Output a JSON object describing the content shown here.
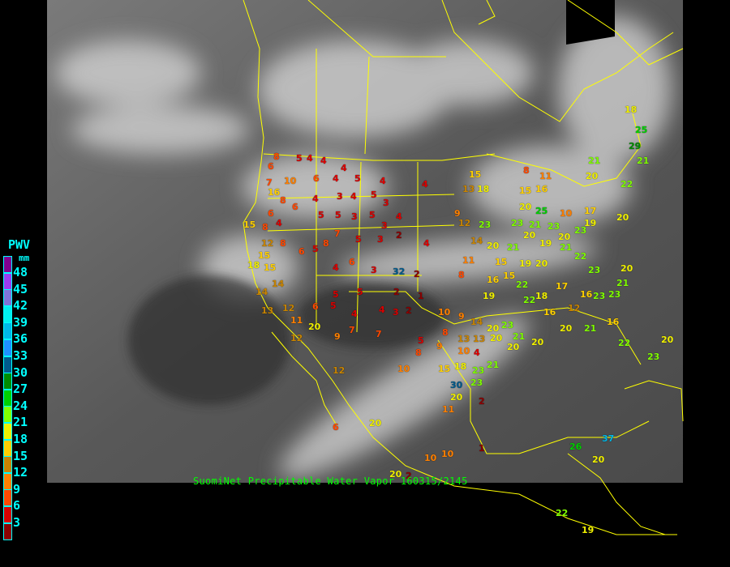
{
  "caption": "SuomiNet Precipitable Water Vapor 160315/2145",
  "legend": {
    "title": "PWV",
    "unit": "mm",
    "ticks": [
      "48",
      "45",
      "42",
      "39",
      "36",
      "33",
      "30",
      "27",
      "24",
      "21",
      "18",
      "15",
      "12",
      "9",
      "6",
      "3"
    ],
    "colors": [
      "#800090",
      "#9a3cf0",
      "#7f74d8",
      "#00f0f0",
      "#00b8e8",
      "#1e90ff",
      "#005a8c",
      "#008c00",
      "#00d000",
      "#80ff00",
      "#f0f000",
      "#ffd000",
      "#c88400",
      "#ff8000",
      "#ff4800",
      "#d80000",
      "#8c0000"
    ]
  },
  "colors": {
    "border": "#ffff00",
    "label": "#00ffff",
    "caption": "#00ff00"
  },
  "stations": [
    "8",
    "5",
    "4",
    "4",
    "4",
    "6",
    "4",
    "5",
    "4",
    "4",
    "15",
    "13",
    "18",
    "8",
    "11",
    "15",
    "16",
    "6",
    "7",
    "10",
    "16",
    "8",
    "6",
    "4",
    "3",
    "4",
    "5",
    "3",
    "6",
    "5",
    "5",
    "3",
    "5",
    "4",
    "3",
    "15",
    "8",
    "4",
    "9",
    "12",
    "23",
    "12",
    "8",
    "6",
    "5",
    "8",
    "7",
    "5",
    "3",
    "2",
    "4",
    "14",
    "20",
    "21",
    "19",
    "21",
    "22",
    "15",
    "18",
    "15",
    "4",
    "6",
    "3",
    "32",
    "2",
    "8",
    "11",
    "15",
    "19",
    "16",
    "15",
    "22",
    "20",
    "23",
    "20",
    "14",
    "14",
    "5",
    "5",
    "2",
    "1",
    "19",
    "22",
    "18",
    "17",
    "16",
    "23",
    "23",
    "21",
    "13",
    "12",
    "6",
    "5",
    "4",
    "4",
    "3",
    "2",
    "10",
    "9",
    "14",
    "20",
    "23",
    "16",
    "12",
    "16",
    "11",
    "20",
    "9",
    "7",
    "7",
    "5",
    "8",
    "13",
    "13",
    "20",
    "21",
    "20",
    "20",
    "21",
    "22",
    "12",
    "8",
    "9",
    "10",
    "4",
    "20",
    "23",
    "20",
    "10",
    "15",
    "18",
    "23",
    "12",
    "30",
    "23",
    "20",
    "2",
    "21",
    "11",
    "20",
    "6",
    "10",
    "10",
    "1",
    "20",
    "2",
    "26",
    "37",
    "20",
    "22",
    "19",
    "21",
    "20",
    "22",
    "21",
    "25",
    "18",
    "29",
    "20",
    "25",
    "10",
    "17",
    "20",
    "21",
    "23",
    "20",
    "23",
    "20",
    "19",
    "23"
  ]
}
